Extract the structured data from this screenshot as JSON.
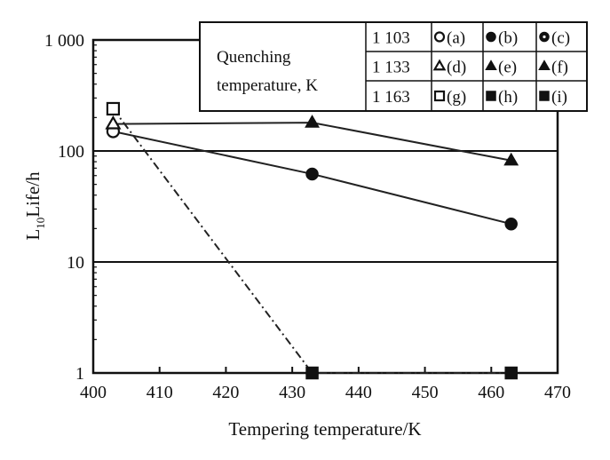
{
  "chart_data": {
    "type": "line",
    "title": "",
    "xlabel": "Tempering temperature/K",
    "ylabel_main": "L",
    "ylabel_sub": "10",
    "ylabel_rest": "Life/h",
    "xlim": [
      400,
      470
    ],
    "ylim": [
      1,
      1000
    ],
    "yscale": "log",
    "grid": "horizontal at 10 and 100",
    "x_ticks": [
      400,
      410,
      420,
      430,
      440,
      450,
      460,
      470
    ],
    "x_tick_labels": [
      "400",
      "410",
      "420",
      "430",
      "440",
      "450",
      "460",
      "470"
    ],
    "y_ticks": [
      1,
      10,
      100,
      1000
    ],
    "y_tick_labels": [
      "1",
      "10",
      "100",
      "1 000"
    ],
    "legend": {
      "title_line1": "Quenching",
      "title_line2": "temperature, K",
      "rows": [
        {
          "temp": "1 103",
          "entries": [
            {
              "marker": "circle-open",
              "label": "(a)"
            },
            {
              "marker": "circle-filled",
              "label": "(b)"
            },
            {
              "marker": "circle-dotted",
              "label": "(c)"
            }
          ]
        },
        {
          "temp": "1 133",
          "entries": [
            {
              "marker": "triangle-open",
              "label": "(d)"
            },
            {
              "marker": "triangle-filled",
              "label": "(e)"
            },
            {
              "marker": "triangle-filled",
              "label": "(f)"
            }
          ]
        },
        {
          "temp": "1 163",
          "entries": [
            {
              "marker": "square-open",
              "label": "(g)"
            },
            {
              "marker": "square-filled",
              "label": "(h)"
            },
            {
              "marker": "square-filled",
              "label": "(i)"
            }
          ]
        }
      ]
    },
    "series": [
      {
        "name": "1 103 K",
        "marker": "circle",
        "line": "solid",
        "points": [
          {
            "x": 403,
            "y": 150,
            "open": true
          },
          {
            "x": 433,
            "y": 62,
            "open": false
          },
          {
            "x": 463,
            "y": 22,
            "open": false
          }
        ]
      },
      {
        "name": "1 133 K",
        "marker": "triangle",
        "line": "solid",
        "points": [
          {
            "x": 403,
            "y": 175,
            "open": true
          },
          {
            "x": 433,
            "y": 180,
            "open": false
          },
          {
            "x": 463,
            "y": 82,
            "open": false
          }
        ]
      },
      {
        "name": "1 163 K",
        "marker": "square",
        "line": "dashdot",
        "points": [
          {
            "x": 403,
            "y": 240,
            "open": true
          },
          {
            "x": 433,
            "y": 1,
            "open": false
          },
          {
            "x": 463,
            "y": 1,
            "open": false
          }
        ]
      }
    ]
  }
}
